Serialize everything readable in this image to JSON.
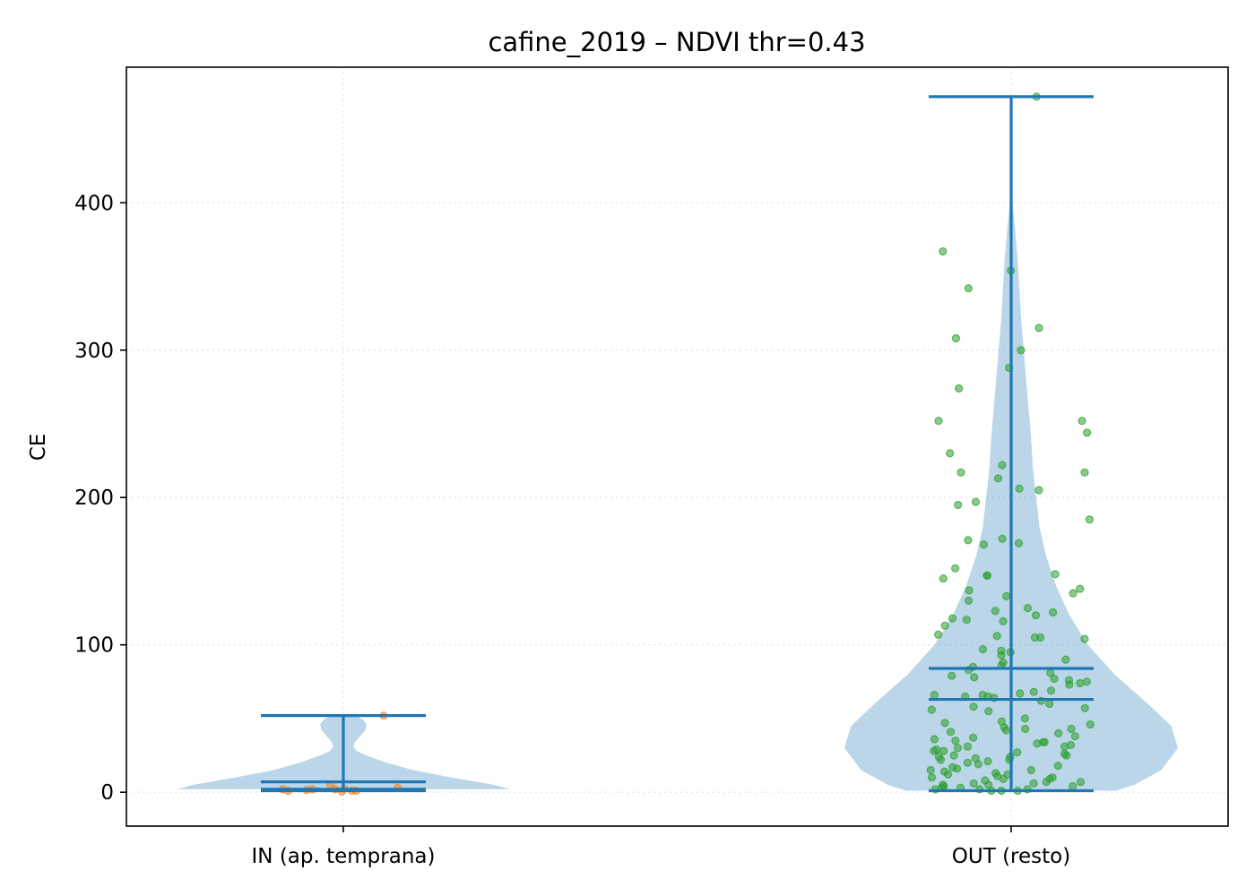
{
  "chart_data": {
    "type": "violin",
    "title": "cafine_2019 – NDVI thr=0.43",
    "xlabel": "",
    "ylabel": "CE",
    "ylim": [
      -23,
      492
    ],
    "yticks": [
      0,
      100,
      200,
      300,
      400
    ],
    "grid": true,
    "categories": [
      "IN (ap. temprana)",
      "OUT (resto)"
    ],
    "colors": {
      "violin": "#1f77b4",
      "points_in": "#ff7f0e",
      "points_out": "#2ca02c",
      "grid": "#dddddd"
    },
    "violins": [
      {
        "category": "IN (ap. temprana)",
        "min": 1,
        "max": 52,
        "median": 2,
        "mean": 7,
        "density": [
          [
            2,
            1.0
          ],
          [
            5,
            0.9
          ],
          [
            10,
            0.65
          ],
          [
            15,
            0.42
          ],
          [
            20,
            0.26
          ],
          [
            25,
            0.14
          ],
          [
            28,
            0.08
          ],
          [
            31,
            0.06
          ],
          [
            34,
            0.07
          ],
          [
            38,
            0.1
          ],
          [
            42,
            0.13
          ],
          [
            46,
            0.14
          ],
          [
            49,
            0.12
          ],
          [
            51,
            0.09
          ],
          [
            52,
            0.05
          ]
        ],
        "points": [
          0.5,
          1,
          1,
          1.5,
          2,
          2.5,
          2,
          3,
          1,
          5,
          2,
          52
        ]
      },
      {
        "category": "OUT (resto)",
        "min": 1,
        "max": 472,
        "median": 63,
        "mean": 84,
        "density": [
          [
            1,
            0.63
          ],
          [
            5,
            0.74
          ],
          [
            15,
            0.9
          ],
          [
            30,
            1.0
          ],
          [
            45,
            0.96
          ],
          [
            60,
            0.82
          ],
          [
            80,
            0.62
          ],
          [
            100,
            0.46
          ],
          [
            120,
            0.35
          ],
          [
            140,
            0.27
          ],
          [
            160,
            0.21
          ],
          [
            180,
            0.17
          ],
          [
            200,
            0.15
          ],
          [
            220,
            0.13
          ],
          [
            240,
            0.12
          ],
          [
            260,
            0.105
          ],
          [
            280,
            0.09
          ],
          [
            300,
            0.075
          ],
          [
            320,
            0.06
          ],
          [
            340,
            0.05
          ],
          [
            360,
            0.04
          ],
          [
            380,
            0.025
          ],
          [
            400,
            0.008
          ]
        ],
        "points": [
          472,
          367,
          354,
          342,
          315,
          308,
          300,
          288,
          274,
          252,
          252,
          244,
          230,
          222,
          217,
          217,
          213,
          206,
          205,
          197,
          195,
          185,
          172,
          171,
          169,
          168,
          152,
          148,
          147,
          147,
          145,
          138,
          137,
          135,
          133,
          130,
          125,
          123,
          122,
          120,
          118,
          117,
          116,
          113,
          107,
          106,
          105,
          105,
          104,
          97,
          96,
          95,
          93,
          90,
          88,
          86,
          85,
          83,
          81,
          79,
          78,
          77,
          76,
          75,
          74,
          73,
          69,
          68,
          67,
          66,
          66,
          65,
          65,
          64,
          62,
          60,
          58,
          57,
          56,
          55,
          50,
          48,
          47,
          46,
          44,
          43,
          43,
          42,
          41,
          40,
          38,
          37,
          36,
          35,
          34,
          34,
          33,
          32,
          31,
          31,
          30,
          29,
          28,
          28,
          27,
          26,
          25,
          25,
          24,
          24,
          23,
          22,
          22,
          21,
          20,
          19,
          18,
          17,
          16,
          15,
          15,
          14,
          13,
          12,
          12,
          11,
          10,
          10,
          9,
          9,
          8,
          7,
          7,
          6,
          6,
          5,
          5,
          4,
          4,
          3,
          3,
          2,
          2,
          2,
          1,
          1,
          1
        ]
      }
    ]
  }
}
